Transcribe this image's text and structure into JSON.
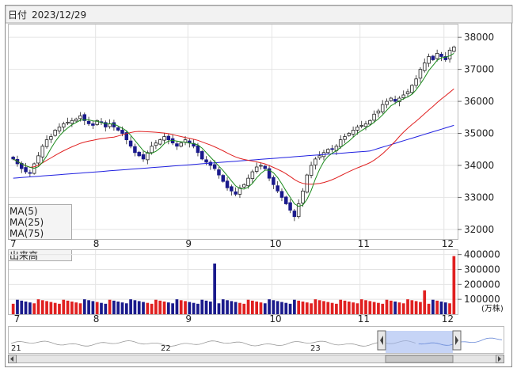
{
  "header": {
    "label": "日付",
    "date": "2023/12/29"
  },
  "legend": [
    {
      "name": "MA(5)",
      "color": "#1a8a1a"
    },
    {
      "name": "MA(25)",
      "color": "#e02020"
    },
    {
      "name": "MA(75)",
      "color": "#2020e0"
    }
  ],
  "volume_panel": {
    "title": "出来高",
    "unit": "(万株)"
  },
  "navigator": {
    "years": [
      "21",
      "22",
      "23"
    ]
  },
  "colors": {
    "up": "#e02020",
    "down": "#1a1a8c",
    "upbody": "#ffffff",
    "ma5": "#1a8a1a",
    "ma25": "#e02020",
    "ma75": "#2020e0",
    "nav": "#a0b8f0"
  },
  "chart_data": {
    "type": "candlestick",
    "months": [
      {
        "label": "7",
        "day": 0
      },
      {
        "label": "8",
        "day": 20
      },
      {
        "label": "9",
        "day": 42
      },
      {
        "label": "10",
        "day": 62
      },
      {
        "label": "11",
        "day": 83
      },
      {
        "label": "12",
        "day": 103
      }
    ],
    "price_axis": {
      "ticks": [
        "38000",
        "37000",
        "36000",
        "35000",
        "34000",
        "33000",
        "32000"
      ],
      "ylim": [
        31700,
        38400
      ]
    },
    "volume_axis": {
      "ticks": [
        "400000",
        "300000",
        "200000",
        "100000"
      ],
      "ylim": [
        0,
        430000
      ]
    },
    "close": [
      34200,
      34050,
      33900,
      33800,
      33750,
      34050,
      34300,
      34600,
      34800,
      34900,
      35100,
      35200,
      35300,
      35350,
      35400,
      35450,
      35550,
      35400,
      35300,
      35250,
      35400,
      35350,
      35200,
      35300,
      35200,
      35100,
      35000,
      34800,
      34600,
      34400,
      34300,
      34200,
      34400,
      34600,
      34700,
      34800,
      34900,
      34800,
      34700,
      34600,
      34700,
      34800,
      34700,
      34600,
      34400,
      34200,
      34100,
      34000,
      33900,
      33700,
      33500,
      33300,
      33200,
      33100,
      33300,
      33400,
      33600,
      33800,
      33950,
      34000,
      33900,
      33600,
      33400,
      33200,
      33000,
      32800,
      32600,
      32400,
      32800,
      33200,
      33700,
      34000,
      34200,
      34300,
      34400,
      34500,
      34500,
      34600,
      34800,
      34900,
      35000,
      35100,
      35200,
      35250,
      35300,
      35400,
      35600,
      35700,
      35900,
      36000,
      36100,
      36000,
      36100,
      36200,
      36300,
      36500,
      36700,
      37000,
      37200,
      37400,
      37300,
      37500,
      37400,
      37300,
      37600,
      37700
    ],
    "volume_ma": {
      "ma5": [
        34200,
        34140,
        34060,
        33980,
        33940,
        33910,
        33960,
        34090,
        34300,
        34530,
        34740,
        34920,
        35060,
        35170,
        35270,
        35340,
        35410,
        35390,
        35380,
        35370,
        35380,
        35320,
        35300,
        35300,
        35270,
        35230,
        35160,
        35080,
        34940,
        34780,
        34620,
        34460,
        34380,
        34380,
        34440,
        34540,
        34680,
        34760,
        34780,
        34760,
        34740,
        34720,
        34720,
        34680,
        34640,
        34540,
        34400,
        34260,
        34120,
        33980,
        33840,
        33680,
        33520,
        33360,
        33280,
        33260,
        33300,
        33400,
        33530,
        33660,
        33750,
        33770,
        33730,
        33580,
        33420,
        33200,
        33000,
        32800,
        32720,
        32760,
        32860,
        33020,
        33180,
        33480,
        33720,
        33940,
        34140,
        34320,
        34440,
        34560,
        34660,
        34760,
        34880,
        34990,
        35090,
        35170,
        35250,
        35350,
        35450,
        35580,
        35720,
        35840,
        35940,
        36020,
        36100,
        36140,
        36220,
        36360,
        36540,
        36740,
        36920,
        37080,
        37220,
        37340,
        37400,
        37460
      ]
    }
  },
  "navigator_data": {
    "recent_start": 0.83
  }
}
